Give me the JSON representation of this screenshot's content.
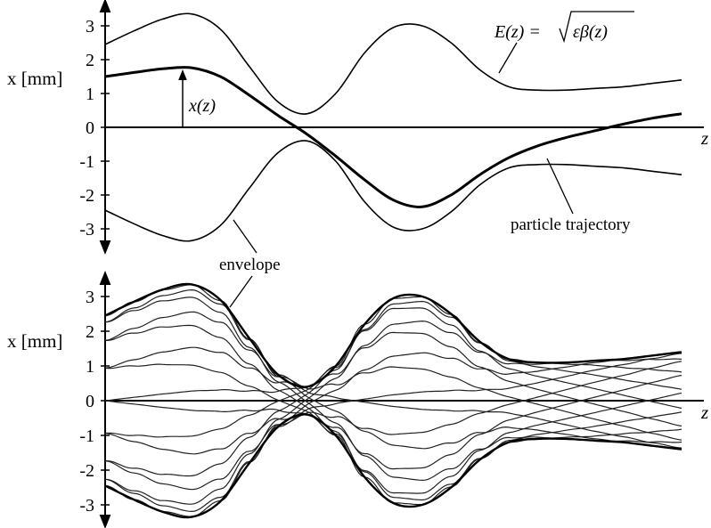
{
  "chart_data": [
    {
      "type": "line",
      "title": "",
      "xlabel": "z",
      "ylabel": "x [mm]",
      "ylim": [
        -3.5,
        3.5
      ],
      "xlim": [
        0,
        10
      ],
      "grid": false,
      "yticks": [
        "3",
        "2",
        "1",
        "0",
        "-1",
        "-2",
        "-3"
      ],
      "series": [
        {
          "role": "envelope-upper",
          "x": [
            0,
            0.5,
            1,
            1.5,
            2,
            2.5,
            3,
            3.5,
            4,
            4.5,
            5,
            5.5,
            6,
            6.5,
            7,
            7.5,
            8,
            8.5,
            9,
            9.5,
            10
          ],
          "values": [
            2.45,
            2.85,
            3.2,
            3.35,
            2.9,
            1.8,
            0.75,
            0.4,
            1.0,
            2.2,
            2.95,
            3.0,
            2.5,
            1.7,
            1.2,
            1.1,
            1.1,
            1.15,
            1.2,
            1.3,
            1.4
          ]
        },
        {
          "role": "envelope-lower",
          "x": [
            0,
            0.5,
            1,
            1.5,
            2,
            2.5,
            3,
            3.5,
            4,
            4.5,
            5,
            5.5,
            6,
            6.5,
            7,
            7.5,
            8,
            8.5,
            9,
            9.5,
            10
          ],
          "values": [
            -2.45,
            -2.85,
            -3.2,
            -3.35,
            -2.9,
            -1.8,
            -0.75,
            -0.4,
            -1.0,
            -2.2,
            -2.95,
            -3.0,
            -2.5,
            -1.7,
            -1.2,
            -1.1,
            -1.1,
            -1.15,
            -1.2,
            -1.3,
            -1.4
          ]
        },
        {
          "role": "particle-trajectory",
          "x": [
            0,
            0.5,
            1,
            1.5,
            2,
            2.5,
            3,
            3.5,
            4,
            4.5,
            5,
            5.5,
            6,
            6.5,
            7,
            7.5,
            8,
            8.5,
            9,
            9.5,
            10
          ],
          "values": [
            1.5,
            1.62,
            1.73,
            1.76,
            1.5,
            0.95,
            0.35,
            -0.2,
            -0.85,
            -1.55,
            -2.15,
            -2.35,
            -2.0,
            -1.4,
            -0.9,
            -0.55,
            -0.3,
            -0.1,
            0.1,
            0.27,
            0.4
          ]
        }
      ],
      "annotations": {
        "trajectory_label": "x(z)",
        "envelope_formula_lhs": "E(z) = ",
        "envelope_formula_rad": "εβ(z)",
        "particle_label": "particle trajectory",
        "envelope_label": "envelope"
      }
    },
    {
      "type": "line",
      "title": "",
      "xlabel": "z",
      "ylabel": "x [mm]",
      "ylim": [
        -3.5,
        3.5
      ],
      "xlim": [
        0,
        10
      ],
      "grid": false,
      "yticks": [
        "3",
        "2",
        "1",
        "0",
        "-1",
        "-2",
        "-3"
      ],
      "envelope": {
        "x": [
          0,
          0.5,
          1,
          1.5,
          2,
          2.5,
          3,
          3.5,
          4,
          4.5,
          5,
          5.5,
          6,
          6.5,
          7,
          7.5,
          8,
          8.5,
          9,
          9.5,
          10
        ],
        "values": [
          2.45,
          2.85,
          3.2,
          3.35,
          2.9,
          1.8,
          0.75,
          0.4,
          1.0,
          2.2,
          2.95,
          3.0,
          2.5,
          1.7,
          1.2,
          1.1,
          1.1,
          1.15,
          1.2,
          1.3,
          1.4
        ]
      },
      "trajectory_family": {
        "count": 16,
        "phase_offsets": [
          0.0,
          0.393,
          0.785,
          1.178,
          1.571,
          1.963,
          2.356,
          2.749,
          3.142,
          3.534,
          3.927,
          4.32,
          4.712,
          5.105,
          5.498,
          5.89
        ]
      }
    }
  ]
}
